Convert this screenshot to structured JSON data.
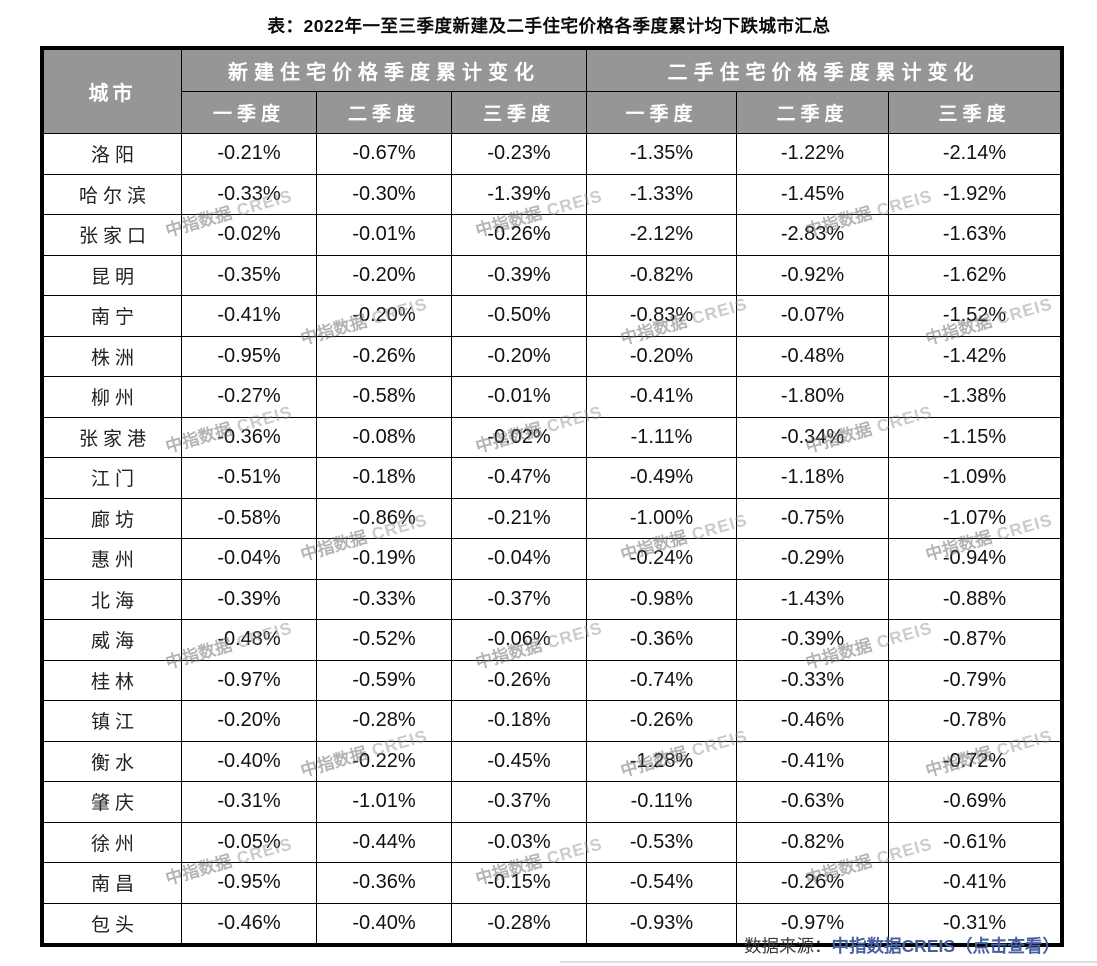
{
  "title": "表：2022年一至三季度新建及二手住宅价格各季度累计均下跌城市汇总",
  "table": {
    "city_header": "城市",
    "group_headers": [
      "新建住宅价格季度累计变化",
      "二手住宅价格季度累计变化"
    ],
    "quarter_headers": [
      "一季度",
      "二季度",
      "三季度",
      "一季度",
      "二季度",
      "三季度"
    ],
    "rows": [
      {
        "city": "洛阳",
        "new": [
          "-0.21%",
          "-0.67%",
          "-0.23%"
        ],
        "secondhand": [
          "-1.35%",
          "-1.22%",
          "-2.14%"
        ]
      },
      {
        "city": "哈尔滨",
        "new": [
          "-0.33%",
          "-0.30%",
          "-1.39%"
        ],
        "secondhand": [
          "-1.33%",
          "-1.45%",
          "-1.92%"
        ]
      },
      {
        "city": "张家口",
        "new": [
          "-0.02%",
          "-0.01%",
          "-0.26%"
        ],
        "secondhand": [
          "-2.12%",
          "-2.83%",
          "-1.63%"
        ]
      },
      {
        "city": "昆明",
        "new": [
          "-0.35%",
          "-0.20%",
          "-0.39%"
        ],
        "secondhand": [
          "-0.82%",
          "-0.92%",
          "-1.62%"
        ]
      },
      {
        "city": "南宁",
        "new": [
          "-0.41%",
          "-0.20%",
          "-0.50%"
        ],
        "secondhand": [
          "-0.83%",
          "-0.07%",
          "-1.52%"
        ]
      },
      {
        "city": "株洲",
        "new": [
          "-0.95%",
          "-0.26%",
          "-0.20%"
        ],
        "secondhand": [
          "-0.20%",
          "-0.48%",
          "-1.42%"
        ]
      },
      {
        "city": "柳州",
        "new": [
          "-0.27%",
          "-0.58%",
          "-0.01%"
        ],
        "secondhand": [
          "-0.41%",
          "-1.80%",
          "-1.38%"
        ]
      },
      {
        "city": "张家港",
        "new": [
          "-0.36%",
          "-0.08%",
          "-0.02%"
        ],
        "secondhand": [
          "-1.11%",
          "-0.34%",
          "-1.15%"
        ]
      },
      {
        "city": "江门",
        "new": [
          "-0.51%",
          "-0.18%",
          "-0.47%"
        ],
        "secondhand": [
          "-0.49%",
          "-1.18%",
          "-1.09%"
        ]
      },
      {
        "city": "廊坊",
        "new": [
          "-0.58%",
          "-0.86%",
          "-0.21%"
        ],
        "secondhand": [
          "-1.00%",
          "-0.75%",
          "-1.07%"
        ]
      },
      {
        "city": "惠州",
        "new": [
          "-0.04%",
          "-0.19%",
          "-0.04%"
        ],
        "secondhand": [
          "-0.24%",
          "-0.29%",
          "-0.94%"
        ]
      },
      {
        "city": "北海",
        "new": [
          "-0.39%",
          "-0.33%",
          "-0.37%"
        ],
        "secondhand": [
          "-0.98%",
          "-1.43%",
          "-0.88%"
        ]
      },
      {
        "city": "威海",
        "new": [
          "-0.48%",
          "-0.52%",
          "-0.06%"
        ],
        "secondhand": [
          "-0.36%",
          "-0.39%",
          "-0.87%"
        ]
      },
      {
        "city": "桂林",
        "new": [
          "-0.97%",
          "-0.59%",
          "-0.26%"
        ],
        "secondhand": [
          "-0.74%",
          "-0.33%",
          "-0.79%"
        ]
      },
      {
        "city": "镇江",
        "new": [
          "-0.20%",
          "-0.28%",
          "-0.18%"
        ],
        "secondhand": [
          "-0.26%",
          "-0.46%",
          "-0.78%"
        ]
      },
      {
        "city": "衡水",
        "new": [
          "-0.40%",
          "-0.22%",
          "-0.45%"
        ],
        "secondhand": [
          "-1.28%",
          "-0.41%",
          "-0.72%"
        ]
      },
      {
        "city": "肇庆",
        "new": [
          "-0.31%",
          "-1.01%",
          "-0.37%"
        ],
        "secondhand": [
          "-0.11%",
          "-0.63%",
          "-0.69%"
        ]
      },
      {
        "city": "徐州",
        "new": [
          "-0.05%",
          "-0.44%",
          "-0.03%"
        ],
        "secondhand": [
          "-0.53%",
          "-0.82%",
          "-0.61%"
        ]
      },
      {
        "city": "南昌",
        "new": [
          "-0.95%",
          "-0.36%",
          "-0.15%"
        ],
        "secondhand": [
          "-0.54%",
          "-0.26%",
          "-0.41%"
        ]
      },
      {
        "city": "包头",
        "new": [
          "-0.46%",
          "-0.40%",
          "-0.28%"
        ],
        "secondhand": [
          "-0.93%",
          "-0.97%",
          "-0.31%"
        ]
      }
    ]
  },
  "watermark": {
    "text_cn": "中指数据",
    "text_en": "CREIS"
  },
  "footer": {
    "label": "数据来源：",
    "link": "中指数据CREIS（点击查看）"
  },
  "colors": {
    "header_bg": "#969696",
    "header_text": "#FFFFFF",
    "border": "#000000",
    "link": "#45609F"
  }
}
